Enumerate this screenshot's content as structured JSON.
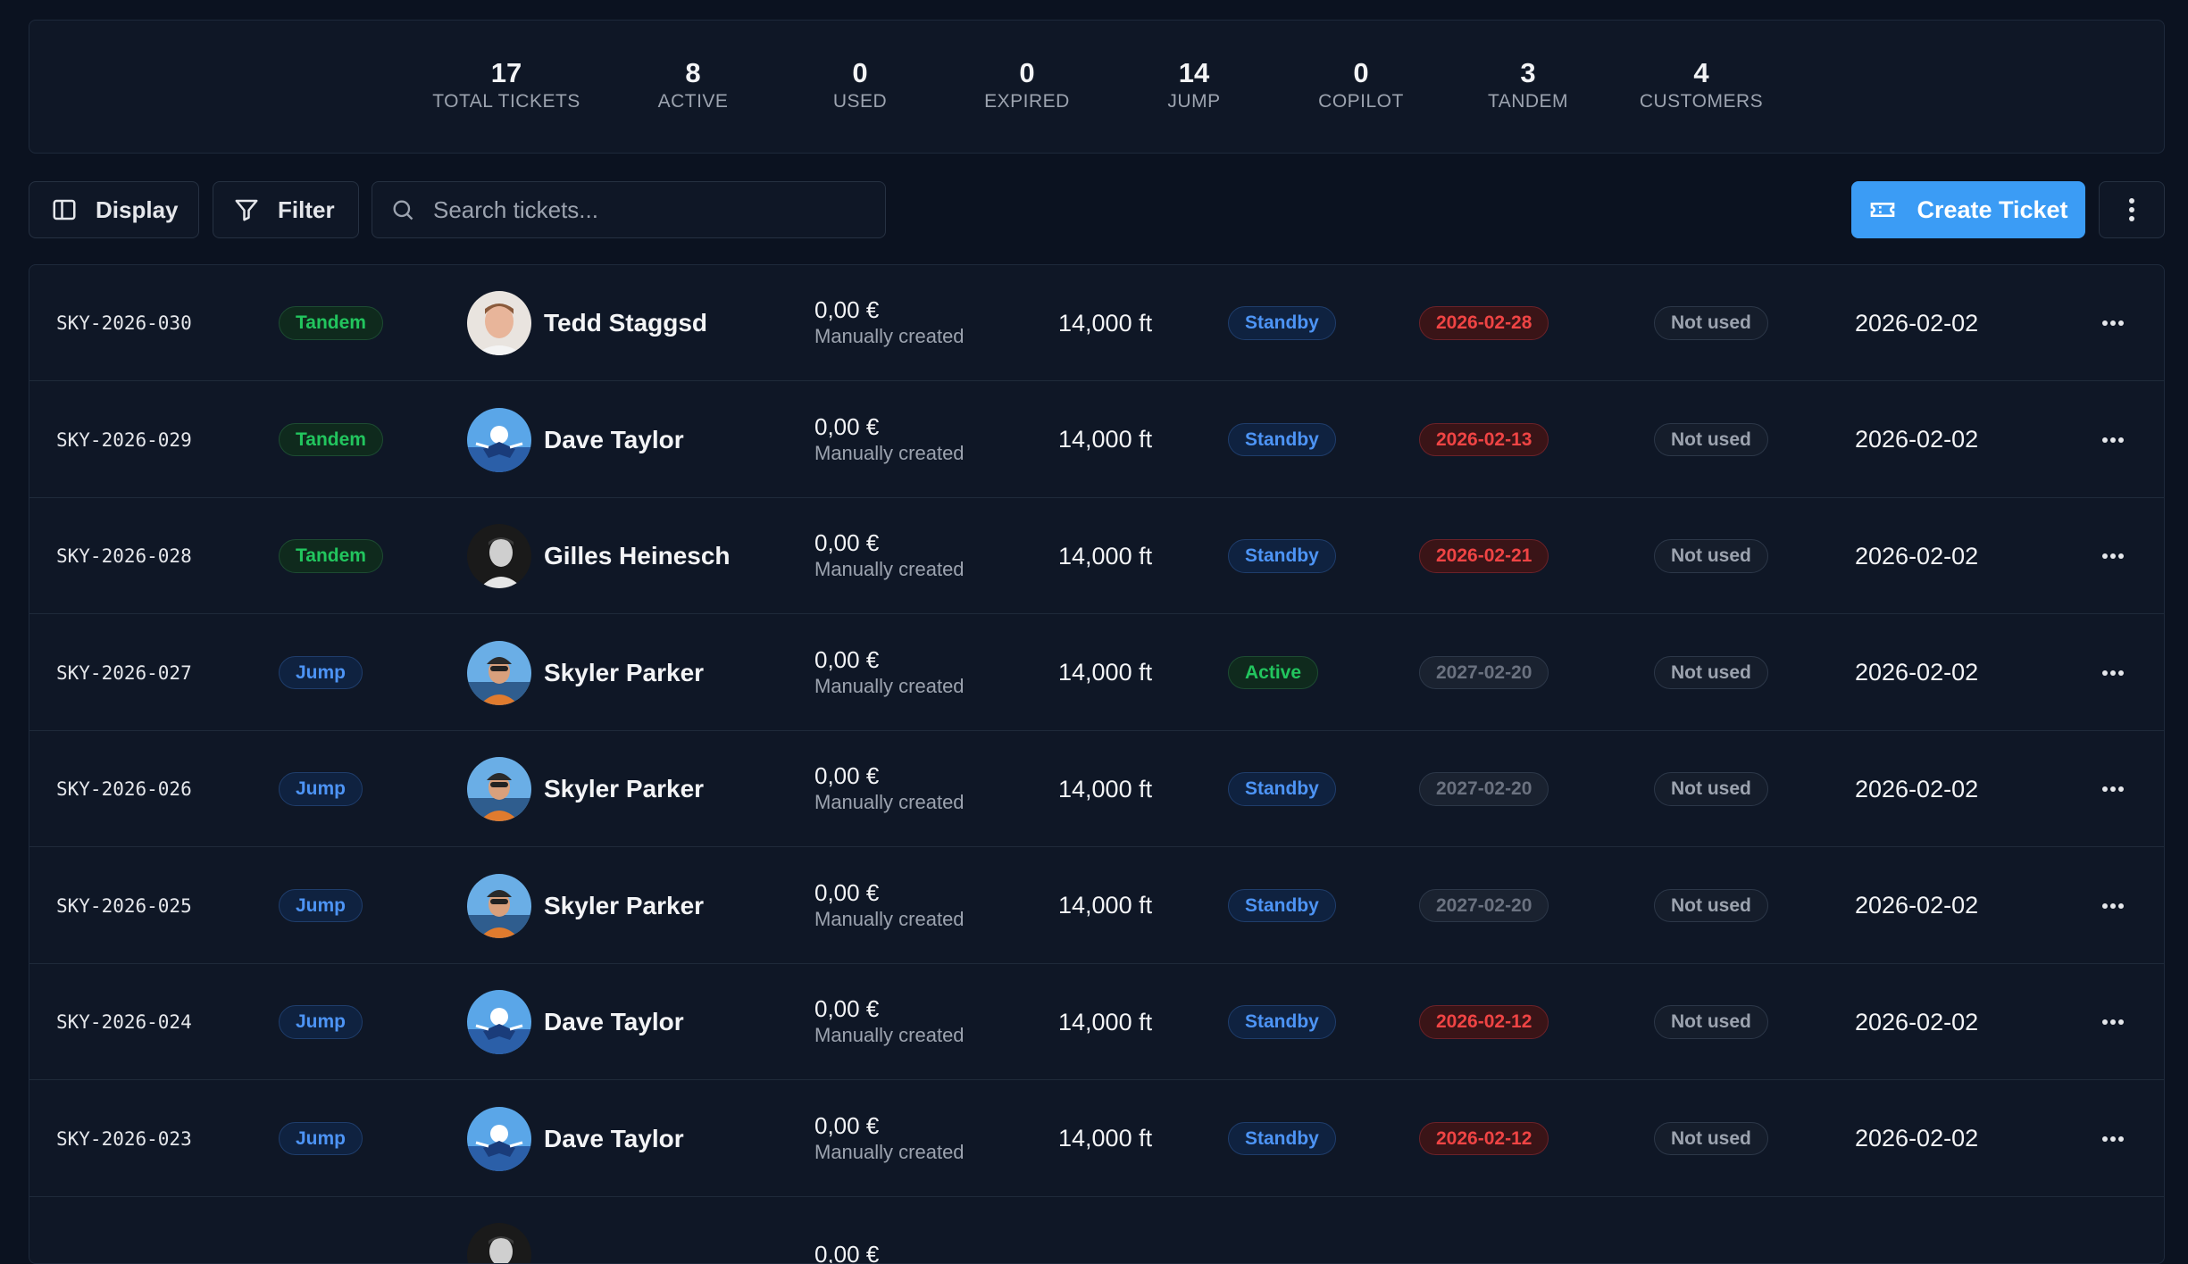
{
  "stats": [
    {
      "value": "17",
      "label": "TOTAL TICKETS"
    },
    {
      "value": "8",
      "label": "ACTIVE"
    },
    {
      "value": "0",
      "label": "USED"
    },
    {
      "value": "0",
      "label": "EXPIRED"
    },
    {
      "value": "14",
      "label": "JUMP"
    },
    {
      "value": "0",
      "label": "COPILOT"
    },
    {
      "value": "3",
      "label": "TANDEM"
    },
    {
      "value": "4",
      "label": "CUSTOMERS"
    }
  ],
  "toolbar": {
    "display_label": "Display",
    "filter_label": "Filter",
    "search_placeholder": "Search tickets...",
    "create_label": "Create Ticket"
  },
  "colors": {
    "accent": "#3b9cf5",
    "background": "#0b1220",
    "tandem": "#22c55e",
    "jump": "#4d94f5",
    "expired_date": "#ef4444"
  },
  "rows": [
    {
      "id": "SKY-2026-030",
      "type": "Tandem",
      "customer": "Tedd Staggsd",
      "avatar": "portrait",
      "price": "0,00 €",
      "source": "Manually created",
      "altitude": "14,000 ft",
      "status": "Standby",
      "expiry": "2026-02-28",
      "expiry_style": "red",
      "usage": "Not used",
      "created": "2026-02-02"
    },
    {
      "id": "SKY-2026-029",
      "type": "Tandem",
      "customer": "Dave Taylor",
      "avatar": "skydiver-blue",
      "price": "0,00 €",
      "source": "Manually created",
      "altitude": "14,000 ft",
      "status": "Standby",
      "expiry": "2026-02-13",
      "expiry_style": "red",
      "usage": "Not used",
      "created": "2026-02-02"
    },
    {
      "id": "SKY-2026-028",
      "type": "Tandem",
      "customer": "Gilles Heinesch",
      "avatar": "bw-portrait",
      "price": "0,00 €",
      "source": "Manually created",
      "altitude": "14,000 ft",
      "status": "Standby",
      "expiry": "2026-02-21",
      "expiry_style": "red",
      "usage": "Not used",
      "created": "2026-02-02"
    },
    {
      "id": "SKY-2026-027",
      "type": "Jump",
      "customer": "Skyler Parker",
      "avatar": "skydiver-orange",
      "price": "0,00 €",
      "source": "Manually created",
      "altitude": "14,000 ft",
      "status": "Active",
      "expiry": "2027-02-20",
      "expiry_style": "gray",
      "usage": "Not used",
      "created": "2026-02-02"
    },
    {
      "id": "SKY-2026-026",
      "type": "Jump",
      "customer": "Skyler Parker",
      "avatar": "skydiver-orange",
      "price": "0,00 €",
      "source": "Manually created",
      "altitude": "14,000 ft",
      "status": "Standby",
      "expiry": "2027-02-20",
      "expiry_style": "gray",
      "usage": "Not used",
      "created": "2026-02-02"
    },
    {
      "id": "SKY-2026-025",
      "type": "Jump",
      "customer": "Skyler Parker",
      "avatar": "skydiver-orange",
      "price": "0,00 €",
      "source": "Manually created",
      "altitude": "14,000 ft",
      "status": "Standby",
      "expiry": "2027-02-20",
      "expiry_style": "gray",
      "usage": "Not used",
      "created": "2026-02-02"
    },
    {
      "id": "SKY-2026-024",
      "type": "Jump",
      "customer": "Dave Taylor",
      "avatar": "skydiver-blue",
      "price": "0,00 €",
      "source": "Manually created",
      "altitude": "14,000 ft",
      "status": "Standby",
      "expiry": "2026-02-12",
      "expiry_style": "red",
      "usage": "Not used",
      "created": "2026-02-02"
    },
    {
      "id": "SKY-2026-023",
      "type": "Jump",
      "customer": "Dave Taylor",
      "avatar": "skydiver-blue",
      "price": "0,00 €",
      "source": "Manually created",
      "altitude": "14,000 ft",
      "status": "Standby",
      "expiry": "2026-02-12",
      "expiry_style": "red",
      "usage": "Not used",
      "created": "2026-02-02"
    },
    {
      "id": "",
      "type": "",
      "customer": "",
      "avatar": "bw-portrait",
      "price": "0,00 €",
      "source": "",
      "altitude": "",
      "status": "",
      "expiry": "",
      "expiry_style": "gray",
      "usage": "",
      "created": ""
    }
  ]
}
